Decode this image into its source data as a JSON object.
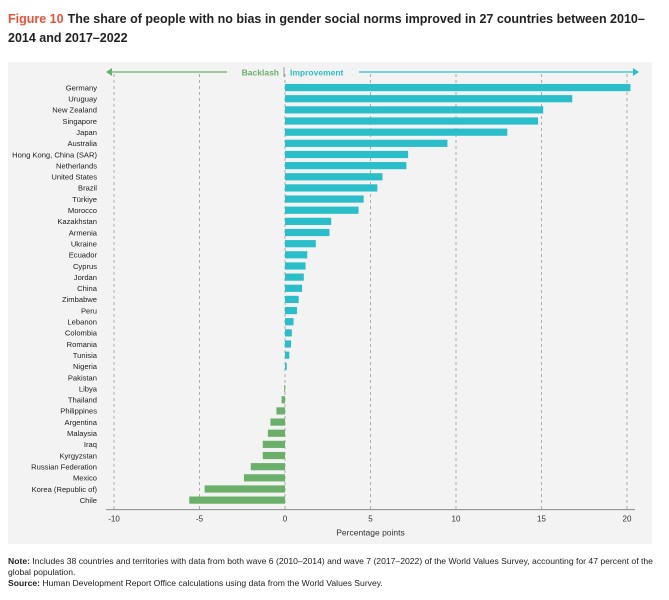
{
  "header": {
    "figure_label": "Figure 10",
    "title_text": "The share of people with no bias in gender social norms improved in 27 countries between 2010–2014 and 2017–2022"
  },
  "notes": {
    "note_label": "Note:",
    "note_text": "Includes 38 countries and territories with data from both wave 6 (2010–2014) and wave 7 (2017–2022) of the World Values Survey, accounting for 47 percent of the global population.",
    "source_label": "Source:",
    "source_text": "Human Development Report Office calculations using data from the World Values Survey."
  },
  "chart_data": {
    "type": "bar",
    "orientation": "horizontal",
    "xlabel": "Percentage points",
    "xlim": [
      -10,
      20
    ],
    "xticks": [
      -10,
      -5,
      0,
      5,
      10,
      15,
      20
    ],
    "grid": "vertical dashed",
    "arrows": {
      "left_label": "Backlash",
      "right_label": "Improvement"
    },
    "colors": {
      "positive": "#29bec9",
      "negative": "#6ab06a",
      "arrow_left": "#6ab06a",
      "arrow_right": "#29bec9"
    },
    "categories": [
      "Germany",
      "Uruguay",
      "New Zealand",
      "Singapore",
      "Japan",
      "Australia",
      "Hong Kong, China (SAR)",
      "Netherlands",
      "United States",
      "Brazil",
      "Türkiye",
      "Morocco",
      "Kazakhstan",
      "Armenia",
      "Ukraine",
      "Ecuador",
      "Cyprus",
      "Jordan",
      "China",
      "Zimbabwe",
      "Peru",
      "Lebanon",
      "Colombia",
      "Romania",
      "Tunisia",
      "Nigeria",
      "Pakistan",
      "Libya",
      "Thailand",
      "Philippines",
      "Argentina",
      "Malaysia",
      "Iraq",
      "Kyrgyzstan",
      "Russian Federation",
      "Mexico",
      "Korea (Republic of)",
      "Chile"
    ],
    "values": [
      20.2,
      16.8,
      15.1,
      14.8,
      13.0,
      9.5,
      7.2,
      7.1,
      5.7,
      5.4,
      4.6,
      4.3,
      2.7,
      2.6,
      1.8,
      1.3,
      1.2,
      1.1,
      1.0,
      0.8,
      0.7,
      0.5,
      0.4,
      0.35,
      0.25,
      0.1,
      0.0,
      -0.05,
      -0.2,
      -0.5,
      -0.85,
      -1.0,
      -1.3,
      -1.3,
      -2.0,
      -2.4,
      -4.7,
      -5.6
    ]
  }
}
